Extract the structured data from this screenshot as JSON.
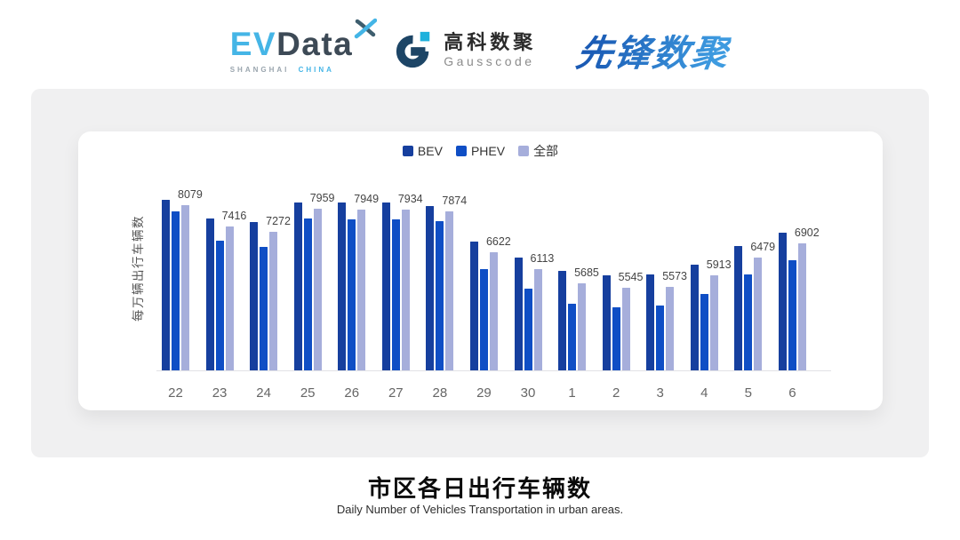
{
  "header": {
    "evdata": {
      "ev": "EV",
      "data": "Data",
      "sub_shanghai": "SHANGHAI",
      "sub_china": "CHINA"
    },
    "gausscode": {
      "cn": "高科数聚",
      "en": "Gausscode"
    },
    "xianfeng": {
      "text": "先锋数聚"
    }
  },
  "chart_data": {
    "type": "bar",
    "title": "市区各日出行车辆数",
    "subtitle": "Daily Number of Vehicles Transportation in urban areas.",
    "ylabel": "每万辆出行车辆数",
    "xlabel": "",
    "categories": [
      "22",
      "23",
      "24",
      "25",
      "26",
      "27",
      "28",
      "29",
      "30",
      "1",
      "2",
      "3",
      "4",
      "5",
      "6"
    ],
    "series": [
      {
        "name": "BEV",
        "color": "#163F9E",
        "values": [
          8240,
          7670,
          7560,
          8170,
          8150,
          8170,
          8060,
          6950,
          6480,
          6060,
          5930,
          5950,
          6240,
          6810,
          7240
        ]
      },
      {
        "name": "PHEV",
        "color": "#0F4EC5",
        "values": [
          7880,
          6990,
          6790,
          7660,
          7650,
          7630,
          7580,
          6110,
          5520,
          5050,
          4940,
          4980,
          5340,
          5950,
          6390
        ]
      },
      {
        "name": "全部",
        "color": "#A6AEDB",
        "labeled": true,
        "values": [
          8079,
          7416,
          7272,
          7959,
          7949,
          7934,
          7874,
          6622,
          6113,
          5685,
          5545,
          5573,
          5913,
          6479,
          6902
        ]
      }
    ],
    "ylim": [
      3000,
      9470
    ],
    "grid": false,
    "legend_position": "top"
  }
}
